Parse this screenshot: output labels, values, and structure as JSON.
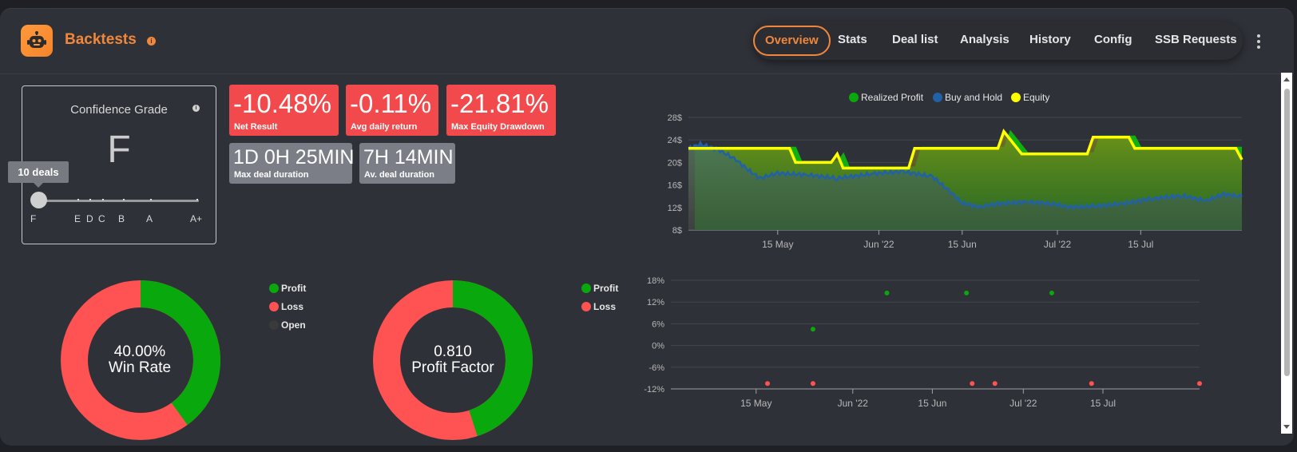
{
  "header": {
    "title": "Backtests",
    "tabs": [
      {
        "label": "Overview",
        "active": true
      },
      {
        "label": "Stats",
        "active": false
      },
      {
        "label": "Deal list",
        "active": false
      },
      {
        "label": "Analysis",
        "active": false
      },
      {
        "label": "History",
        "active": false
      },
      {
        "label": "Config",
        "active": false
      },
      {
        "label": "SSB Requests",
        "active": false
      }
    ]
  },
  "colors": {
    "accent": "#f0873a",
    "negative": "#f24a4c",
    "neutral": "#7b7e86",
    "profit": "#09a80c",
    "loss": "#ff5252",
    "buy_hold": "#2161a8",
    "equity": "#ffff00"
  },
  "confidence": {
    "title": "Confidence Grade",
    "grade": "F",
    "tooltip": "10 deals",
    "scale_labels": [
      "F",
      "E",
      "D",
      "C",
      "B",
      "A",
      "A+"
    ]
  },
  "stats": {
    "net_result": {
      "value": "-10.48%",
      "label": "Net Result"
    },
    "avg_daily_return": {
      "value": "-0.11%",
      "label": "Avg daily return"
    },
    "max_equity_drawdown": {
      "value": "-21.81%",
      "label": "Max Equity Drawdown"
    },
    "max_deal_duration": {
      "value": "1D 0H 25MIN",
      "label": "Max deal duration"
    },
    "avg_deal_duration": {
      "value": "7H 14MIN",
      "label": "Av. deal duration"
    }
  },
  "win_rate": {
    "value_text": "40.00%",
    "label": "Win Rate",
    "legend": [
      "Profit",
      "Loss",
      "Open"
    ],
    "profit_fraction": 0.4,
    "loss_fraction": 0.6,
    "open_fraction": 0
  },
  "profit_factor": {
    "value_text": "0.810",
    "label": "Profit Factor",
    "legend": [
      "Profit",
      "Loss"
    ],
    "profit_fraction": 0.45,
    "loss_fraction": 0.55
  },
  "chart_data": [
    {
      "type": "area",
      "legend": [
        "Realized Profit",
        "Buy and Hold",
        "Equity"
      ],
      "legend_placement": "top-center",
      "y_ticks": [
        "28$",
        "24$",
        "20$",
        "16$",
        "12$",
        "8$"
      ],
      "ylim": [
        8,
        28
      ],
      "x_ticks": [
        "15 May",
        "Jun '22",
        "15 Jun",
        "Jul '22",
        "15 Jul"
      ],
      "x_tick_dates": [
        "2022-05-15",
        "2022-06-01",
        "2022-06-15",
        "2022-07-01",
        "2022-07-15"
      ],
      "xlim": [
        "2022-04-30",
        "2022-08-01"
      ],
      "series": [
        {
          "name": "Equity",
          "points": [
            [
              "2022-04-30",
              22.5
            ],
            [
              "2022-05-17",
              22.5
            ],
            [
              "2022-05-18",
              20
            ],
            [
              "2022-05-24",
              20
            ],
            [
              "2022-05-25",
              21.5
            ],
            [
              "2022-05-26",
              19
            ],
            [
              "2022-06-06",
              19
            ],
            [
              "2022-06-07",
              22.5
            ],
            [
              "2022-06-21",
              22.5
            ],
            [
              "2022-06-22",
              25.5
            ],
            [
              "2022-06-25",
              21.5
            ],
            [
              "2022-07-06",
              21.5
            ],
            [
              "2022-07-07",
              24.5
            ],
            [
              "2022-07-13",
              24.5
            ],
            [
              "2022-07-14",
              22.5
            ],
            [
              "2022-07-31",
              22.5
            ],
            [
              "2022-08-01",
              20.5
            ]
          ]
        },
        {
          "name": "Buy and Hold",
          "points": [
            [
              "2022-04-30",
              22.5
            ],
            [
              "2022-05-02",
              23.2
            ],
            [
              "2022-05-05",
              22.3
            ],
            [
              "2022-05-08",
              20.5
            ],
            [
              "2022-05-10",
              18.7
            ],
            [
              "2022-05-12",
              17.2
            ],
            [
              "2022-05-15",
              18.1
            ],
            [
              "2022-05-20",
              17.8
            ],
            [
              "2022-05-25",
              17.2
            ],
            [
              "2022-05-31",
              18.0
            ],
            [
              "2022-06-05",
              18.4
            ],
            [
              "2022-06-10",
              17.5
            ],
            [
              "2022-06-13",
              14.8
            ],
            [
              "2022-06-15",
              12.8
            ],
            [
              "2022-06-18",
              12.1
            ],
            [
              "2022-06-21",
              12.7
            ],
            [
              "2022-06-26",
              13.0
            ],
            [
              "2022-06-30",
              12.7
            ],
            [
              "2022-07-03",
              12.1
            ],
            [
              "2022-07-07",
              12.2
            ],
            [
              "2022-07-12",
              12.7
            ],
            [
              "2022-07-17",
              13.6
            ],
            [
              "2022-07-22",
              14.1
            ],
            [
              "2022-07-26",
              13.2
            ],
            [
              "2022-07-29",
              14.4
            ],
            [
              "2022-08-01",
              13.9
            ]
          ]
        }
      ]
    },
    {
      "type": "scatter",
      "y_ticks": [
        "18%",
        "12%",
        "6%",
        "0%",
        "-6%",
        "-12%"
      ],
      "ylim": [
        -12,
        18
      ],
      "x_ticks": [
        "15 May",
        "Jun '22",
        "15 Jun",
        "Jul '22",
        "15 Jul"
      ],
      "x_tick_dates": [
        "2022-05-15",
        "2022-06-01",
        "2022-06-15",
        "2022-07-01",
        "2022-07-15"
      ],
      "xlim": [
        "2022-04-30",
        "2022-08-01"
      ],
      "series": [
        {
          "name": "Profit",
          "points": [
            [
              "2022-05-25",
              4.5
            ],
            [
              "2022-06-07",
              14.5
            ],
            [
              "2022-06-21",
              14.5
            ],
            [
              "2022-07-06",
              14.5
            ]
          ]
        },
        {
          "name": "Loss",
          "points": [
            [
              "2022-05-17",
              -10.5
            ],
            [
              "2022-05-25",
              -10.5
            ],
            [
              "2022-06-22",
              -10.5
            ],
            [
              "2022-06-26",
              -10.5
            ],
            [
              "2022-07-13",
              -10.5
            ],
            [
              "2022-08-01",
              -10.5
            ]
          ]
        }
      ]
    }
  ]
}
